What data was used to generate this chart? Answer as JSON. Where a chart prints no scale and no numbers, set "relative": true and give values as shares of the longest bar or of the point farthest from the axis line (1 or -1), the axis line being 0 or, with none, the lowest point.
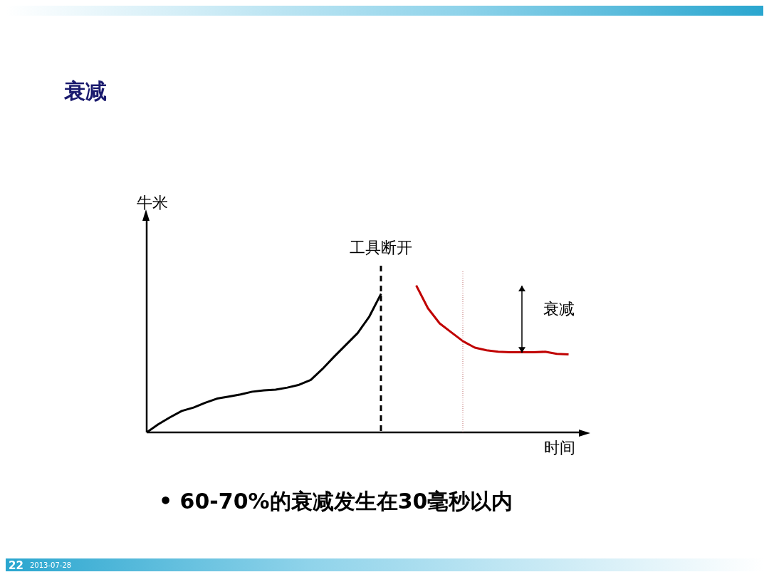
{
  "chart_data": {
    "type": "line",
    "title": "衰减",
    "xlabel": "时间",
    "ylabel": "牛米",
    "relative": true,
    "categories": [
      null,
      null,
      null,
      null,
      null,
      null,
      null,
      null,
      null,
      null,
      null,
      null,
      null,
      null,
      null,
      null,
      null,
      null,
      null,
      null,
      null,
      null,
      null,
      null,
      null,
      null,
      null,
      null,
      null,
      null,
      null,
      null,
      null,
      null,
      null,
      null,
      null,
      null
    ],
    "series": [
      {
        "color": "#000000",
        "values": [
          0,
          0.056,
          0.103,
          0.146,
          0.169,
          0.202,
          0.23,
          0.244,
          0.258,
          0.277,
          0.286,
          0.291,
          0.305,
          0.324,
          0.357,
          0.432,
          0.516,
          0.596,
          0.676,
          0.789,
          0.944,
          null,
          null,
          null,
          null,
          null,
          null,
          null,
          null,
          null,
          null,
          null,
          null,
          null,
          null,
          null,
          null,
          null
        ]
      },
      {
        "color": "#c00000",
        "values": [
          null,
          null,
          null,
          null,
          null,
          null,
          null,
          null,
          null,
          null,
          null,
          null,
          null,
          null,
          null,
          null,
          null,
          null,
          null,
          null,
          null,
          null,
          null,
          1,
          0.845,
          0.742,
          0.681,
          0.62,
          0.577,
          0.559,
          0.549,
          0.545,
          0.545,
          0.545,
          0.549,
          0.535,
          0.531,
          null
        ]
      }
    ],
    "annotations": [
      "衰减",
      "• 60-70%的衰减发生在30毫秒以内",
      "22",
      "2013-07-28",
      "工具断开"
    ],
    "grid": false,
    "legend": false,
    "marker": "none",
    "line_style": "solid"
  }
}
